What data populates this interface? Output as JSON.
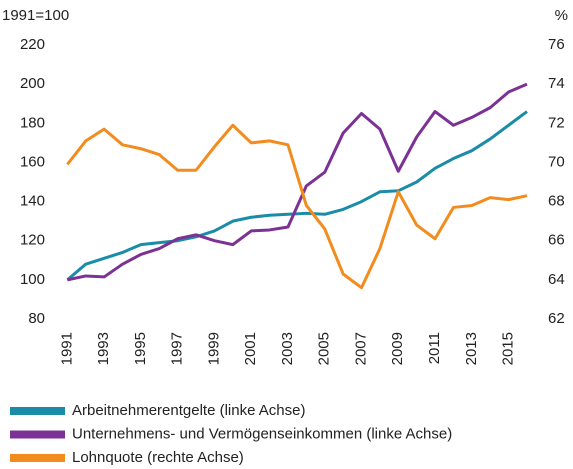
{
  "chart_data": {
    "type": "line",
    "y_label": "1991=100",
    "y2_label": "%",
    "x": [
      1991,
      1992,
      1993,
      1994,
      1995,
      1996,
      1997,
      1998,
      1999,
      2000,
      2001,
      2002,
      2003,
      2004,
      2005,
      2006,
      2007,
      2008,
      2009,
      2010,
      2011,
      2012,
      2013,
      2014,
      2015,
      2016
    ],
    "xlim": [
      1990.6,
      2016.6
    ],
    "xticks": [
      1991,
      1993,
      1995,
      1997,
      1999,
      2001,
      2003,
      2005,
      2007,
      2009,
      2011,
      2013,
      2015
    ],
    "ylim": [
      80,
      220
    ],
    "yticks": [
      80,
      100,
      120,
      140,
      160,
      180,
      200,
      220
    ],
    "y2lim": [
      62,
      76
    ],
    "y2ticks": [
      62,
      64,
      66,
      68,
      70,
      72,
      74,
      76
    ],
    "series": [
      {
        "name": "Arbeitnehmerentgelte (linke Achse)",
        "color": "#1a8ca8",
        "values": [
          100,
          108,
          111,
          114,
          118,
          119,
          120,
          122,
          125,
          130,
          132,
          133,
          133.5,
          134,
          133.5,
          136,
          140,
          145,
          145.5,
          150,
          157,
          162,
          166,
          172,
          179,
          186
        ]
      },
      {
        "name": "Unternehmens- und Vermögenseinkommen (linke Achse)",
        "color": "#7b3294",
        "values": [
          100,
          102,
          101.5,
          108,
          113,
          116,
          121,
          123,
          120,
          118,
          125,
          125.5,
          127,
          148,
          155,
          175,
          185,
          177,
          155.5,
          173,
          186,
          179,
          183,
          188,
          196,
          200
        ]
      },
      {
        "name": "Lohnquote (rechte Achse)",
        "color": "#f28c1e",
        "axis": "y2",
        "values": [
          69.9,
          71.1,
          71.7,
          70.9,
          70.7,
          70.4,
          69.6,
          69.6,
          70.8,
          71.9,
          71.0,
          71.1,
          70.9,
          67.8,
          66.6,
          64.3,
          63.6,
          65.6,
          68.5,
          66.8,
          66.1,
          67.7,
          67.8,
          68.2,
          68.1,
          68.3
        ]
      }
    ]
  }
}
